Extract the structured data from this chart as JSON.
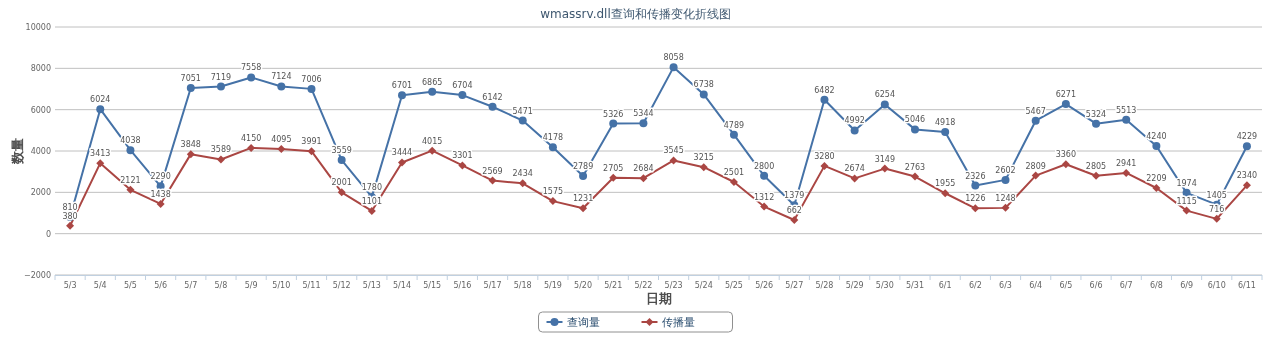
{
  "chart_data": {
    "type": "line",
    "title": "wmassrv.dll查询和传播变化折线图",
    "xlabel": "日期",
    "ylabel": "数量",
    "categories": [
      "5/3",
      "5/4",
      "5/5",
      "5/6",
      "5/7",
      "5/8",
      "5/9",
      "5/10",
      "5/11",
      "5/12",
      "5/13",
      "5/14",
      "5/15",
      "5/16",
      "5/17",
      "5/18",
      "5/19",
      "5/20",
      "5/21",
      "5/22",
      "5/23",
      "5/24",
      "5/25",
      "5/26",
      "5/27",
      "5/28",
      "5/29",
      "5/30",
      "5/31",
      "6/1",
      "6/2",
      "6/3",
      "6/4",
      "6/5",
      "6/6",
      "6/7",
      "6/8",
      "6/9",
      "6/10",
      "6/11"
    ],
    "series": [
      {
        "name": "查询量",
        "color": "#4572a7",
        "marker": "circle",
        "values": [
          810,
          6024,
          4038,
          2290,
          7051,
          7119,
          7558,
          7124,
          7006,
          3559,
          1780,
          6701,
          6865,
          6704,
          6142,
          5471,
          4178,
          2789,
          5326,
          5344,
          8058,
          6738,
          4789,
          2800,
          1379,
          6482,
          4992,
          6254,
          5046,
          4918,
          2326,
          2602,
          5467,
          6271,
          5324,
          5513,
          4240,
          1974,
          1405,
          4229
        ]
      },
      {
        "name": "传播量",
        "color": "#aa4643",
        "marker": "diamond",
        "values": [
          380,
          3413,
          2121,
          1438,
          3848,
          3589,
          4150,
          4095,
          3991,
          2001,
          1101,
          3444,
          4015,
          3301,
          2569,
          2434,
          1575,
          1231,
          2705,
          2684,
          3545,
          3215,
          2501,
          1312,
          662,
          3280,
          2674,
          3149,
          2763,
          1955,
          1226,
          1248,
          2809,
          3360,
          2805,
          2941,
          2209,
          1115,
          716,
          2340
        ]
      }
    ],
    "ylim": [
      -2000,
      10000
    ],
    "yticks": [
      -2000,
      0,
      2000,
      4000,
      6000,
      8000,
      10000
    ],
    "grid": "y",
    "legend": "bottom",
    "data_labels": true,
    "line_style": "solid"
  }
}
